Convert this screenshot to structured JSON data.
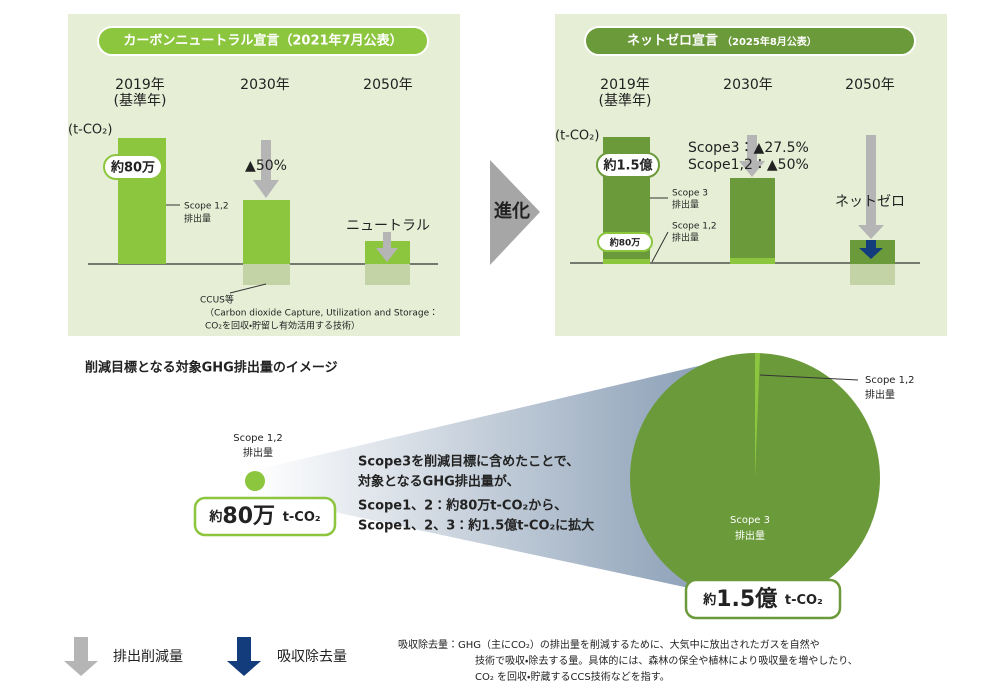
{
  "left_panel": {
    "badge": "カーボンニュートラル宣言（2021年7月公表）",
    "years": [
      [
        "2019年",
        "(基準年)"
      ],
      [
        "2030年"
      ],
      [
        "2050年"
      ]
    ],
    "unit": "(t-CO₂)",
    "bubble": "約80万",
    "reduction": "▲50%",
    "scope_label": [
      "Scope 1,2",
      "排出量"
    ],
    "neutral": "ニュートラル",
    "ccus": [
      "CCUS等",
      "（Carbon dioxide Capture, Utilization and Storage：",
      "CO₂を回収・貯留し有効活用する技術）"
    ]
  },
  "arrow_label": "進化",
  "right_panel": {
    "badge": "ネットゼロ宣言",
    "badge_date": "（2025年8月公表）",
    "years": [
      [
        "2019年",
        "(基準年)"
      ],
      [
        "2030年"
      ],
      [
        "2050年"
      ]
    ],
    "unit": "(t-CO₂)",
    "bubble_scope3": "約1.5億",
    "bubble_scope12": "約80万",
    "reduction": [
      "Scope3：▲27.5%",
      "Scope1,2：▲50%"
    ],
    "scope3_label": [
      "Scope 3",
      "排出量"
    ],
    "scope12_label": [
      "Scope 1,2",
      "排出量"
    ],
    "net_zero": "ネットゼロ"
  },
  "image": {
    "heading": "削減目標となる対象GHG排出量のイメージ",
    "small_label": [
      "Scope 1,2",
      "排出量"
    ],
    "small_box": [
      "約",
      "80万",
      "t-CO₂"
    ],
    "message": [
      "Scope3を削減目標に含めたことで、",
      "対象となるGHG排出量が、",
      "Scope1、2：約80万t-CO₂から、",
      "Scope1、2、3：約1.5億t-CO₂に拡大"
    ],
    "pie_scope12_label": [
      "Scope 1,2",
      "排出量"
    ],
    "pie_scope3_label": [
      "Scope 3",
      "排出量"
    ],
    "big_box": [
      "約",
      "1.5億",
      "t-CO₂"
    ]
  },
  "legend": {
    "reduction": "排出削減量",
    "removal": "吸収除去量"
  },
  "note": [
    "吸収除去量：GHG（主にCO₂）の排出量を削減するために、大気中に放出されたガスを自然や",
    "技術で吸収・除去する量。具体的には、森林の保全や植林により吸収量を増やしたり、",
    "CO₂ を回収・貯蔵するCCS技術などを指す。"
  ]
}
